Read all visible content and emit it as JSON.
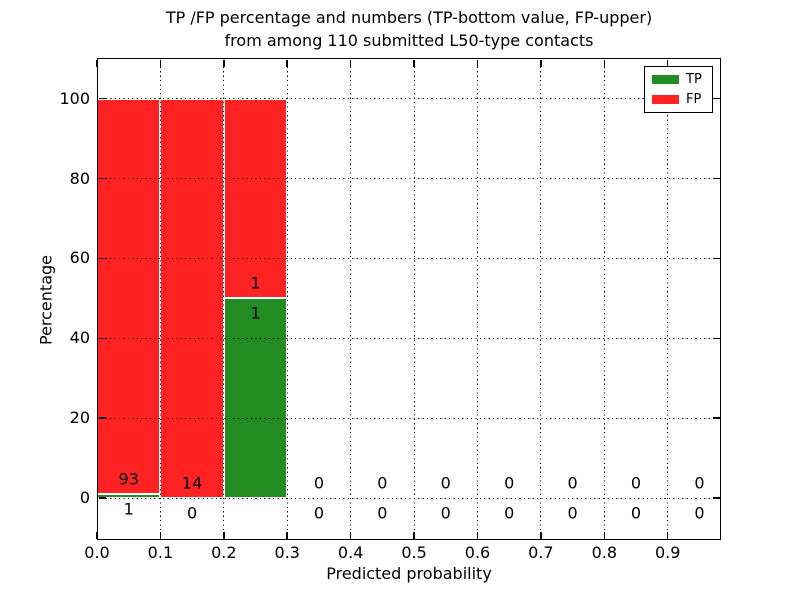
{
  "title": {
    "line1": "TP /FP percentage and numbers (TP-bottom value, FP-upper)",
    "line2": "from among 110 submitted L50-type contacts"
  },
  "axes": {
    "xlabel": "Predicted probability",
    "ylabel": "Percentage"
  },
  "legend": {
    "position": "upper right",
    "entries": [
      {
        "label": "TP",
        "color": "#228b22"
      },
      {
        "label": "FP",
        "color": "#ff2222"
      }
    ]
  },
  "chart_data": {
    "type": "bar",
    "stacked": true,
    "title": "TP /FP percentage and numbers (TP-bottom value, FP-upper) from among 110 submitted L50-type contacts",
    "xlabel": "Predicted probability",
    "ylabel": "Percentage",
    "grid": "dotted",
    "total_contacts": 110,
    "xlim": [
      0,
      0.984
    ],
    "ylim": [
      -10.5,
      110.2
    ],
    "x_ticks": [
      0.0,
      0.1,
      0.2,
      0.3,
      0.4,
      0.5,
      0.6,
      0.7,
      0.8,
      0.9
    ],
    "x_tick_labels": [
      "0.0",
      "0.1",
      "0.2",
      "0.3",
      "0.4",
      "0.5",
      "0.6",
      "0.7",
      "0.8",
      "0.9"
    ],
    "y_ticks": [
      0,
      20,
      40,
      60,
      80,
      100
    ],
    "y_tick_labels": [
      "0",
      "20",
      "40",
      "60",
      "80",
      "100"
    ],
    "bin_width": 0.1,
    "categories": [
      "0.0-0.1",
      "0.1-0.2",
      "0.2-0.3",
      "0.3-0.4",
      "0.4-0.5",
      "0.5-0.6",
      "0.6-0.7",
      "0.7-0.8",
      "0.8-0.9",
      "0.9-1.0"
    ],
    "bin_starts": [
      0.0,
      0.1,
      0.2,
      0.3,
      0.4,
      0.5,
      0.6,
      0.7,
      0.8,
      0.9
    ],
    "bin_centers": [
      0.05,
      0.15,
      0.25,
      0.35,
      0.45,
      0.55,
      0.65,
      0.75,
      0.85,
      0.95
    ],
    "series": [
      {
        "name": "TP",
        "color": "#228b22",
        "counts": [
          1,
          0,
          1,
          0,
          0,
          0,
          0,
          0,
          0,
          0
        ],
        "pct": [
          1.06,
          0,
          50,
          0,
          0,
          0,
          0,
          0,
          0,
          0
        ]
      },
      {
        "name": "FP",
        "color": "#ff2222",
        "counts": [
          93,
          14,
          1,
          0,
          0,
          0,
          0,
          0,
          0,
          0
        ],
        "pct": [
          98.94,
          100,
          50,
          0,
          0,
          0,
          0,
          0,
          0,
          0
        ]
      }
    ]
  }
}
